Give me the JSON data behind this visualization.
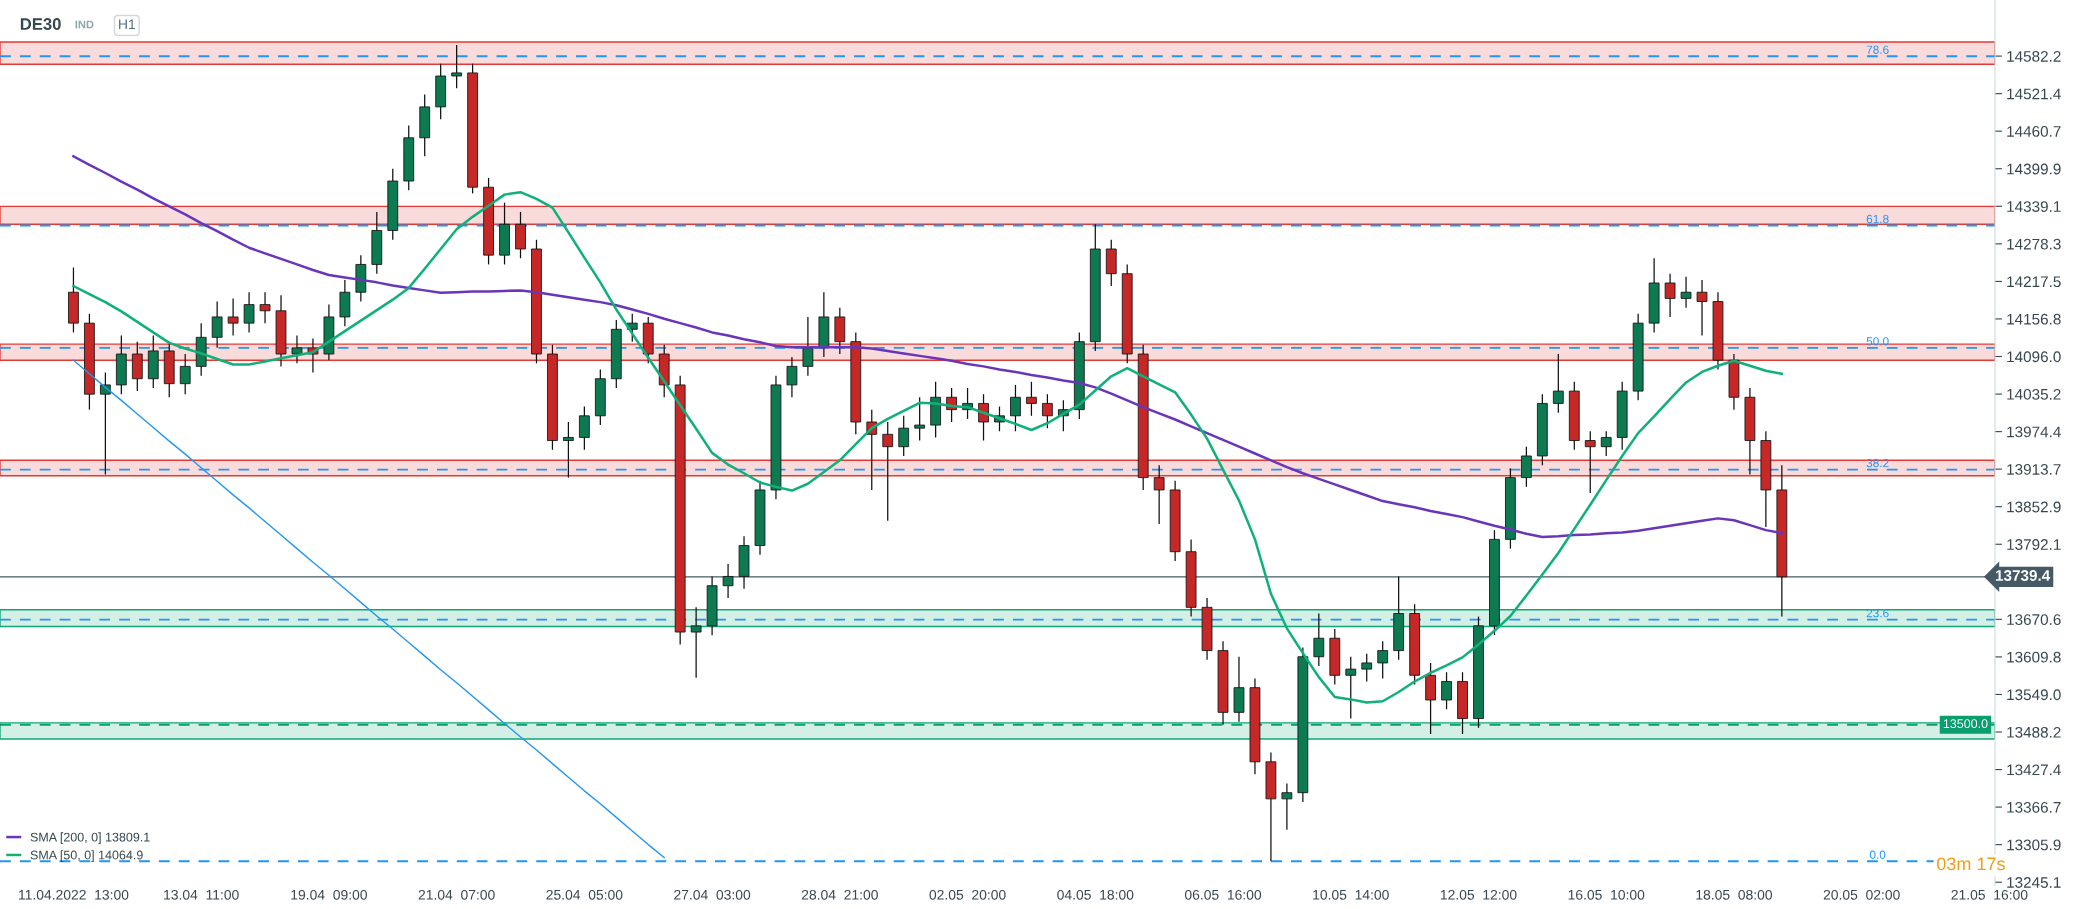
{
  "chart_data": {
    "type": "candlestick",
    "title": "DE30",
    "subtitle": "IND",
    "annotations": [
      "H1",
      "03m 17s",
      {
        "text": "78.6",
        "y": 14582
      },
      {
        "text": "61.8",
        "y": 14308
      },
      {
        "text": "50.0",
        "y": 14110
      },
      {
        "text": "38.2",
        "y": 13913
      },
      {
        "text": "23.6",
        "y": 13670
      },
      {
        "text": "0.0",
        "y": 13279
      }
    ],
    "grid": false,
    "legend": "bottom left",
    "ylim": [
      13240,
      14673
    ],
    "categories": [
      "11.04.2022  13:00",
      null,
      null,
      null,
      null,
      null,
      null,
      null,
      "13.04  11:00",
      null,
      null,
      null,
      null,
      null,
      null,
      null,
      "19.04  09:00",
      null,
      null,
      null,
      null,
      null,
      null,
      null,
      "21.04  07:00",
      null,
      null,
      null,
      null,
      null,
      null,
      null,
      "25.04  05:00",
      null,
      null,
      null,
      null,
      null,
      null,
      null,
      "27.04  03:00",
      null,
      null,
      null,
      null,
      null,
      null,
      null,
      "28.04  21:00",
      null,
      null,
      null,
      null,
      null,
      null,
      null,
      "02.05  20:00",
      null,
      null,
      null,
      null,
      null,
      null,
      null,
      "04.05  18:00",
      null,
      null,
      null,
      null,
      null,
      null,
      null,
      "06.05  16:00",
      null,
      null,
      null,
      null,
      null,
      null,
      null,
      "10.05  14:00",
      null,
      null,
      null,
      null,
      null,
      null,
      null,
      "12.05  12:00",
      null,
      null,
      null,
      null,
      null,
      null,
      null,
      "16.05  10:00",
      null,
      null,
      null,
      null,
      null,
      null,
      null,
      "18.05  08:00",
      null,
      null,
      null,
      null,
      null,
      null,
      null,
      "20.05  02:00",
      null,
      null,
      null,
      null,
      null,
      null,
      null,
      "21.05  16:00"
    ],
    "yticks": [
      14582.2,
      14521.4,
      14460.7,
      14399.9,
      14339.1,
      14278.3,
      14217.5,
      14156.8,
      {
        "value": 14096,
        "label": "14096.0"
      },
      14035.2,
      13974.4,
      13913.7,
      13852.9,
      13792.1,
      13670.6,
      13609.8,
      {
        "value": 13549,
        "label": "13549.0"
      },
      13488.2,
      13427.4,
      13366.7,
      13305.9,
      13245.1
    ],
    "bands": [
      {
        "axis": "y",
        "from": 14569,
        "to": 14605,
        "color": "#e53935"
      },
      {
        "axis": "y",
        "from": 14310,
        "to": 14339,
        "color": "#e53935"
      },
      {
        "axis": "y",
        "from": 14090,
        "to": 14116,
        "color": "#e53935"
      },
      {
        "axis": "y",
        "from": 13903,
        "to": 13928,
        "color": "#e53935"
      },
      {
        "axis": "y",
        "from": 13659,
        "to": 13686,
        "color": "#10a875"
      },
      {
        "axis": "y",
        "from": 13477,
        "to": 13503,
        "color": "#10a875"
      }
    ],
    "ref_lines": [
      {
        "axis": "y",
        "value": 14582,
        "color": "#2196f3",
        "line_style": "dashed"
      },
      {
        "axis": "y",
        "value": 14308,
        "color": "#2196f3",
        "line_style": "dashed"
      },
      {
        "axis": "y",
        "value": 14110,
        "color": "#2196f3",
        "line_style": "dashed"
      },
      {
        "axis": "y",
        "value": 13913,
        "color": "#2196f3",
        "line_style": "dashed"
      },
      {
        "axis": "y",
        "value": 13670,
        "color": "#2196f3",
        "line_style": "dashed"
      },
      {
        "axis": "y",
        "value": 13279,
        "color": "#2196f3",
        "line_style": "dashed"
      },
      {
        "axis": "y",
        "value": 13500,
        "label": "13500.0",
        "color": "#0a9e6e",
        "line_style": "dashed"
      },
      {
        "axis": "y",
        "value": 13739.4,
        "label": "13739.4",
        "color": "#455a64",
        "line_style": "solid"
      }
    ],
    "series": [
      {
        "ohlc": [
          [
            14200,
            14240,
            14135,
            14150
          ],
          [
            14150,
            14165,
            14010,
            14035
          ],
          [
            14035,
            14070,
            13905,
            14050
          ],
          [
            14050,
            14130,
            14035,
            14100
          ],
          [
            14100,
            14120,
            14040,
            14060
          ],
          [
            14060,
            14130,
            14045,
            14105
          ],
          [
            14105,
            14120,
            14030,
            14052
          ],
          [
            14052,
            14100,
            14035,
            14080
          ],
          [
            14080,
            14150,
            14065,
            14127
          ],
          [
            14127,
            14185,
            14110,
            14160
          ],
          [
            14160,
            14190,
            14130,
            14150
          ],
          [
            14150,
            14200,
            14135,
            14180
          ],
          [
            14180,
            14200,
            14150,
            14170
          ],
          [
            14170,
            14195,
            14080,
            14100
          ],
          [
            14100,
            14130,
            14085,
            14110
          ],
          [
            14110,
            14125,
            14070,
            14100
          ],
          [
            14100,
            14180,
            14090,
            14160
          ],
          [
            14160,
            14220,
            14145,
            14200
          ],
          [
            14200,
            14260,
            14185,
            14245
          ],
          [
            14245,
            14330,
            14230,
            14300
          ],
          [
            14300,
            14400,
            14285,
            14380
          ],
          [
            14380,
            14470,
            14365,
            14450
          ],
          [
            14450,
            14520,
            14420,
            14500
          ],
          [
            14500,
            14570,
            14480,
            14550
          ],
          [
            14550,
            14600,
            14530,
            14555
          ],
          [
            14555,
            14570,
            14360,
            14370
          ],
          [
            14370,
            14385,
            14245,
            14260
          ],
          [
            14260,
            14345,
            14245,
            14310
          ],
          [
            14310,
            14330,
            14255,
            14270
          ],
          [
            14270,
            14285,
            14085,
            14100
          ],
          [
            14100,
            14115,
            13945,
            13960
          ],
          [
            13960,
            13990,
            13900,
            13965
          ],
          [
            13965,
            14015,
            13945,
            14000
          ],
          [
            14000,
            14075,
            13985,
            14060
          ],
          [
            14060,
            14155,
            14045,
            14140
          ],
          [
            14140,
            14165,
            14120,
            14150
          ],
          [
            14150,
            14160,
            14085,
            14100
          ],
          [
            14100,
            14115,
            14030,
            14050
          ],
          [
            14050,
            14065,
            13630,
            13650
          ],
          [
            13650,
            13690,
            13576,
            13660
          ],
          [
            13660,
            13740,
            13645,
            13725
          ],
          [
            13725,
            13760,
            13705,
            13740
          ],
          [
            13740,
            13805,
            13720,
            13790
          ],
          [
            13790,
            13895,
            13775,
            13880
          ],
          [
            13880,
            14065,
            13865,
            14050
          ],
          [
            14050,
            14095,
            14030,
            14080
          ],
          [
            14080,
            14160,
            14065,
            14110
          ],
          [
            14110,
            14200,
            14095,
            14160
          ],
          [
            14160,
            14175,
            14100,
            14120
          ],
          [
            14120,
            14135,
            13970,
            13990
          ],
          [
            13990,
            14010,
            13880,
            13970
          ],
          [
            13970,
            13990,
            13830,
            13950
          ],
          [
            13950,
            14000,
            13935,
            13980
          ],
          [
            13980,
            14030,
            13960,
            13985
          ],
          [
            13985,
            14055,
            13965,
            14030
          ],
          [
            14030,
            14045,
            13990,
            14010
          ],
          [
            14010,
            14045,
            13995,
            14020
          ],
          [
            14020,
            14035,
            13960,
            13990
          ],
          [
            13990,
            14015,
            13975,
            14000
          ],
          [
            14000,
            14050,
            13975,
            14030
          ],
          [
            14030,
            14055,
            14000,
            14020
          ],
          [
            14020,
            14035,
            13980,
            14000
          ],
          [
            14000,
            14025,
            13975,
            14010
          ],
          [
            14010,
            14135,
            13995,
            14120
          ],
          [
            14120,
            14310,
            14105,
            14270
          ],
          [
            14270,
            14285,
            14210,
            14230
          ],
          [
            14230,
            14245,
            14085,
            14100
          ],
          [
            14100,
            14115,
            13880,
            13900
          ],
          [
            13900,
            13920,
            13825,
            13880
          ],
          [
            13880,
            13895,
            13765,
            13780
          ],
          [
            13780,
            13800,
            13675,
            13690
          ],
          [
            13690,
            13705,
            13605,
            13620
          ],
          [
            13620,
            13635,
            13500,
            13520
          ],
          [
            13520,
            13610,
            13505,
            13560
          ],
          [
            13560,
            13575,
            13420,
            13440
          ],
          [
            13440,
            13455,
            13279,
            13380
          ],
          [
            13380,
            13405,
            13330,
            13390
          ],
          [
            13390,
            13625,
            13375,
            13610
          ],
          [
            13610,
            13680,
            13595,
            13640
          ],
          [
            13640,
            13655,
            13565,
            13580
          ],
          [
            13580,
            13610,
            13510,
            13590
          ],
          [
            13590,
            13615,
            13570,
            13600
          ],
          [
            13600,
            13635,
            13575,
            13620
          ],
          [
            13620,
            13740,
            13605,
            13680
          ],
          [
            13680,
            13695,
            13565,
            13580
          ],
          [
            13580,
            13600,
            13485,
            13540
          ],
          [
            13540,
            13585,
            13525,
            13570
          ],
          [
            13570,
            13585,
            13485,
            13510
          ],
          [
            13510,
            13675,
            13495,
            13660
          ],
          [
            13660,
            13815,
            13645,
            13800
          ],
          [
            13800,
            13915,
            13785,
            13900
          ],
          [
            13900,
            13950,
            13885,
            13935
          ],
          [
            13935,
            14035,
            13920,
            14020
          ],
          [
            14020,
            14100,
            14005,
            14040
          ],
          [
            14040,
            14055,
            13945,
            13960
          ],
          [
            13960,
            13975,
            13875,
            13950
          ],
          [
            13950,
            13975,
            13935,
            13965
          ],
          [
            13965,
            14055,
            13945,
            14040
          ],
          [
            14040,
            14165,
            14025,
            14150
          ],
          [
            14150,
            14255,
            14135,
            14215
          ],
          [
            14215,
            14230,
            14160,
            14190
          ],
          [
            14190,
            14225,
            14175,
            14200
          ],
          [
            14200,
            14220,
            14130,
            14185
          ],
          [
            14185,
            14200,
            14075,
            14090
          ],
          [
            14090,
            14100,
            14010,
            14030
          ],
          [
            14030,
            14045,
            13905,
            13960
          ],
          [
            13960,
            13975,
            13820,
            13880
          ],
          [
            13880,
            13920,
            13675,
            13739.4
          ],
          null,
          null,
          null,
          null,
          null,
          null,
          null,
          null,
          null,
          null,
          null,
          null,
          null
        ]
      },
      {
        "type": "line",
        "name": "SMA [200, 0] 13809.1",
        "color": "#6a35b8",
        "values": [
          14420,
          14406,
          14393,
          14379,
          14366,
          14352,
          14339,
          14326,
          14312,
          14299,
          14285,
          14272,
          14263,
          14254,
          14245,
          14236,
          14228,
          14224,
          14220,
          14216,
          14211,
          14207,
          14203,
          14199,
          14200,
          14201,
          14201,
          14202,
          14203,
          14200,
          14196,
          14192,
          14188,
          14184,
          14179,
          14172,
          14165,
          14157,
          14150,
          14143,
          14135,
          14130,
          14124,
          14119,
          14113,
          14111,
          14111,
          14111,
          14111,
          14111,
          14109,
          14105,
          14101,
          14097,
          14093,
          14089,
          14084,
          14080,
          14075,
          14071,
          14066,
          14062,
          14057,
          14053,
          14046,
          14036,
          14025,
          14014,
          14004,
          13994,
          13983,
          13972,
          13961,
          13950,
          13939,
          13928,
          13917,
          13907,
          13898,
          13889,
          13880,
          13871,
          13862,
          13857,
          13852,
          13846,
          13841,
          13836,
          13829,
          13822,
          13816,
          13809,
          13804,
          13805,
          13807,
          13808,
          13810,
          13811,
          13814,
          13818,
          13822,
          13826,
          13830,
          13834,
          13831,
          13823,
          13815,
          13810,
          null,
          null,
          null,
          null,
          null,
          null,
          null,
          null,
          null,
          null,
          null,
          null,
          null
        ]
      },
      {
        "type": "line",
        "name": "SMA [50, 0] 14064.9",
        "color": "#10b07a",
        "values": [
          14210,
          14197,
          14184,
          14169,
          14152,
          14135,
          14118,
          14109,
          14101,
          14092,
          14083,
          14083,
          14088,
          14093,
          14098,
          14103,
          14120,
          14137,
          14154,
          14171,
          14188,
          14207,
          14238,
          14270,
          14302,
          14322,
          14340,
          14358,
          14362,
          14351,
          14337,
          14297,
          14256,
          14216,
          14172,
          14133,
          14094,
          14056,
          14017,
          13979,
          13940,
          13921,
          13907,
          13892,
          13885,
          13879,
          13890,
          13909,
          13928,
          13954,
          13980,
          13995,
          14008,
          14021,
          14020,
          14016,
          14014,
          14005,
          13996,
          13987,
          13977,
          13988,
          14003,
          14018,
          14041,
          14064,
          14077,
          14064,
          14051,
          14038,
          14002,
          13963,
          13913,
          13863,
          13800,
          13712,
          13656,
          13616,
          13577,
          13545,
          13541,
          13536,
          13538,
          13553,
          13570,
          13584,
          13596,
          13609,
          13630,
          13652,
          13676,
          13709,
          13743,
          13778,
          13817,
          13856,
          13896,
          13935,
          13972,
          13999,
          14027,
          14054,
          14071,
          14081,
          14089,
          14081,
          14073,
          14068,
          null,
          null,
          null,
          null,
          null,
          null,
          null,
          null,
          null,
          null,
          null,
          null,
          null
        ]
      },
      {
        "type": "line",
        "color": "#2196f3",
        "values": [
          14090,
          14068,
          14046,
          14025,
          14003,
          13981,
          13959,
          13938,
          13916,
          13894,
          13872,
          13851,
          13829,
          13807,
          13785,
          13763,
          13742,
          13720,
          13698,
          13676,
          13655,
          13633,
          13611,
          13589,
          13568,
          13546,
          13524,
          13502,
          13480,
          13459,
          13437,
          13415,
          13393,
          13372,
          13350,
          13328,
          13306,
          13285,
          null,
          null,
          null,
          null,
          null,
          null,
          null,
          null,
          null,
          null,
          null,
          null,
          null,
          null,
          null,
          null,
          null,
          null,
          null,
          null,
          null,
          null,
          null,
          null,
          null,
          null,
          null,
          null,
          null,
          null,
          null,
          null,
          null,
          null,
          null,
          null,
          null,
          null,
          null,
          null,
          null,
          null,
          null,
          null,
          null,
          null,
          null,
          null,
          null,
          null,
          null,
          null,
          null,
          null,
          null,
          null,
          null,
          null,
          null,
          null,
          null,
          null,
          null,
          null,
          null,
          null,
          null,
          null,
          null,
          null,
          null,
          null,
          null,
          null,
          null,
          null,
          null,
          null,
          null,
          null,
          null,
          null,
          null
        ]
      }
    ]
  }
}
